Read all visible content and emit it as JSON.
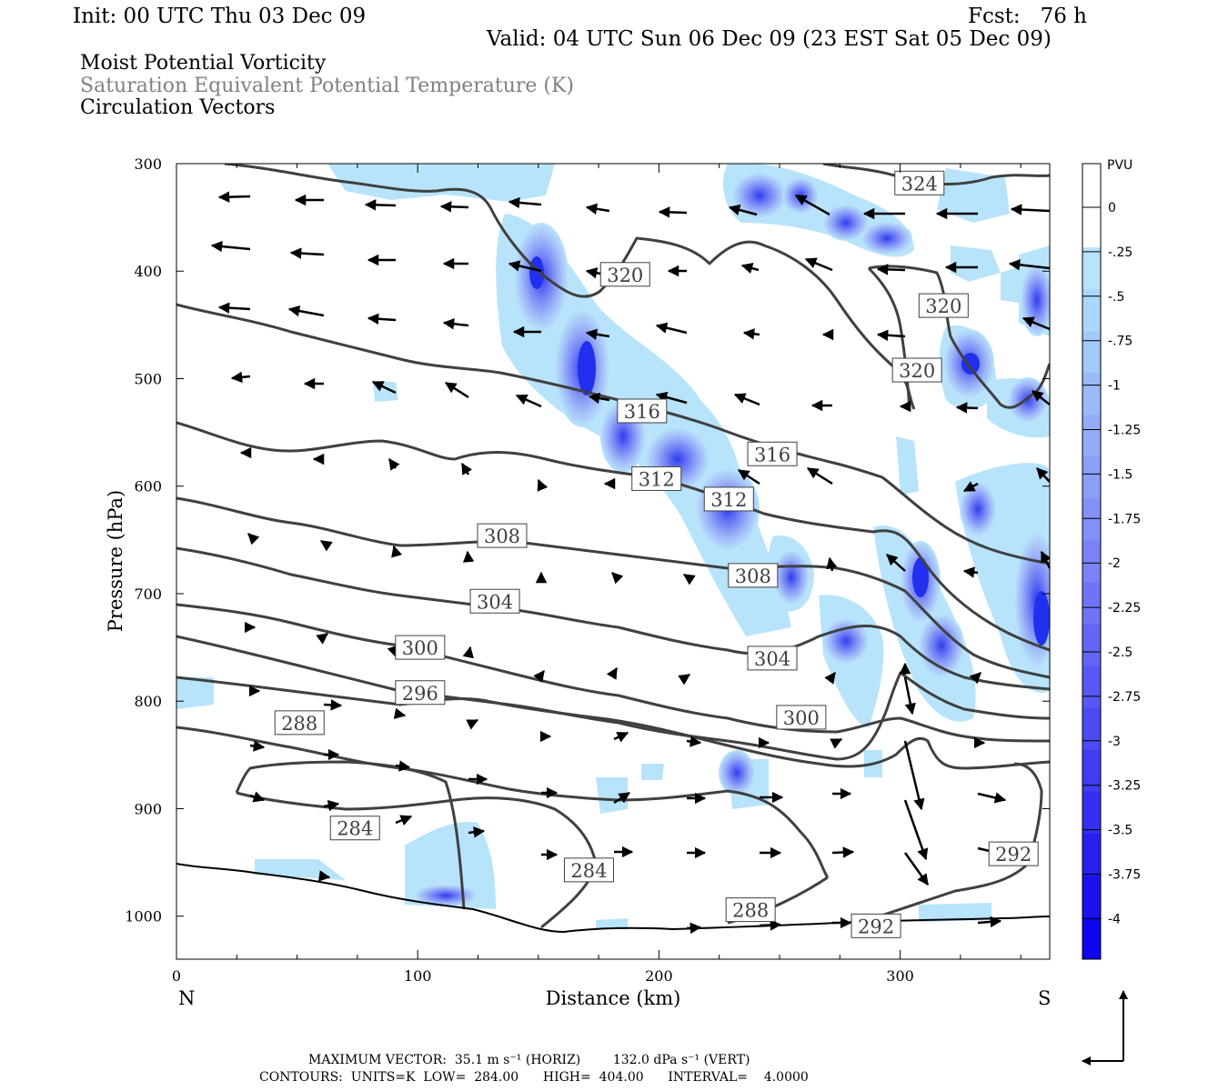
{
  "header": {
    "init": "Init: 00 UTC Thu 03 Dec 09",
    "fcst": "Fcst:   76 h",
    "valid": "Valid: 04 UTC Sun 06 Dec 09 (23 EST Sat 05 Dec 09)"
  },
  "titles": {
    "line1": "Moist Potential Vorticity",
    "line2": "Saturation Equivalent Potential Temperature (K)",
    "line3": "Circulation Vectors",
    "line2_color": "#808080"
  },
  "footer": {
    "max_vector": "MAXIMUM VECTOR:  35.1 m s⁻¹ (HORIZ)        132.0 dPa s⁻¹ (VERT)",
    "contours": "CONTOURS:  UNITS=K  LOW=  284.00      HIGH=  404.00      INTERVAL=    4.0000"
  },
  "chart_data": {
    "type": "cross-section",
    "xlabel": "Distance (km)",
    "ylabel": "Pressure (hPa)",
    "x_ticks": [
      "0",
      "100",
      "200",
      "300"
    ],
    "y_ticks": [
      "300",
      "400",
      "500",
      "600",
      "700",
      "800",
      "900",
      "1000"
    ],
    "xlim": [
      0,
      362
    ],
    "ylim": [
      300,
      1040
    ],
    "left_end_label": "N",
    "right_end_label": "S",
    "colorbar": {
      "unit": "PVU",
      "labels": [
        "0",
        "-.25",
        "-.5",
        "-.75",
        "-1",
        "-1.25",
        "-1.5",
        "-1.75",
        "-2",
        "-2.25",
        "-2.5",
        "-2.75",
        "-3",
        "-3.25",
        "-3.5",
        "-3.75",
        "-4"
      ],
      "colors": [
        "#ffffff",
        "#ffffff",
        "#b8e4fb",
        "#abd6fb",
        "#a3c8fa",
        "#9bbafa",
        "#93acf9",
        "#8b9ef8",
        "#8390f8",
        "#7b82f7",
        "#6f74f6",
        "#6366f5",
        "#5758f4",
        "#4b4af3",
        "#3f3cf2",
        "#332ef1",
        "#2720f0",
        "#1b12ef",
        "#0f04ee"
      ]
    },
    "contour_labels": [
      {
        "text": "324",
        "x": 308,
        "p": 318
      },
      {
        "text": "320",
        "x": 186,
        "p": 403
      },
      {
        "text": "320",
        "x": 318,
        "p": 432
      },
      {
        "text": "320",
        "x": 307,
        "p": 492
      },
      {
        "text": "316",
        "x": 193,
        "p": 530
      },
      {
        "text": "316",
        "x": 247,
        "p": 570
      },
      {
        "text": "312",
        "x": 199,
        "p": 593
      },
      {
        "text": "312",
        "x": 229,
        "p": 612
      },
      {
        "text": "308",
        "x": 135,
        "p": 646
      },
      {
        "text": "308",
        "x": 239,
        "p": 683
      },
      {
        "text": "304",
        "x": 132,
        "p": 707
      },
      {
        "text": "304",
        "x": 247,
        "p": 760
      },
      {
        "text": "300",
        "x": 101,
        "p": 750
      },
      {
        "text": "300",
        "x": 259,
        "p": 815
      },
      {
        "text": "296",
        "x": 101,
        "p": 792
      },
      {
        "text": "292",
        "x": 347,
        "p": 942
      },
      {
        "text": "292",
        "x": 290,
        "p": 1009
      },
      {
        "text": "288",
        "x": 51,
        "p": 820
      },
      {
        "text": "288",
        "x": 238,
        "p": 994
      },
      {
        "text": "284",
        "x": 74,
        "p": 918
      },
      {
        "text": "284",
        "x": 171,
        "p": 957
      }
    ]
  }
}
